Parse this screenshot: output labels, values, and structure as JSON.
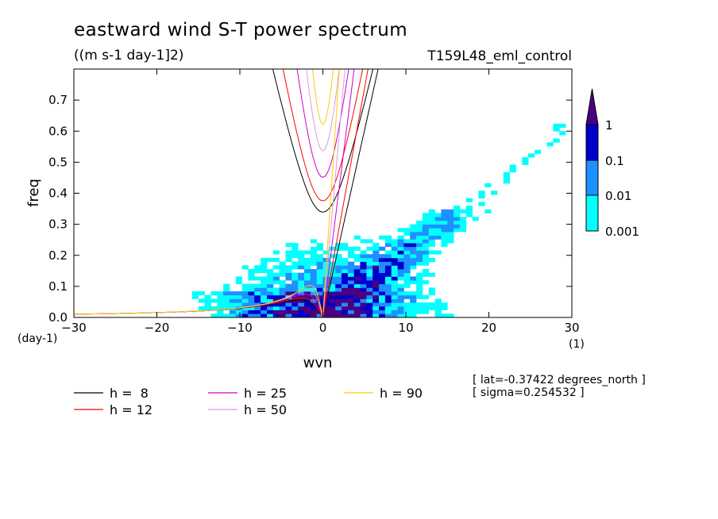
{
  "chart_data": {
    "type": "heatmap",
    "title": "eastward wind S-T power spectrum",
    "units": "((m s-1 day-1]2)",
    "experiment": "T159L48_eml_control",
    "xlabel": "wvn",
    "ylabel": "freq",
    "x_unit": "(1)",
    "y_unit": "(day-1)",
    "xlim": [
      -30,
      30
    ],
    "ylim": [
      0,
      0.8
    ],
    "xticks": [
      "-30",
      "-20",
      "-10",
      "0",
      "10",
      "20",
      "30"
    ],
    "yticks": [
      "0.0",
      "0.1",
      "0.2",
      "0.3",
      "0.4",
      "0.5",
      "0.6",
      "0.7"
    ],
    "levels": {
      "labels": [
        "0.001",
        "0.01",
        "0.1",
        "1"
      ],
      "colors": [
        "#00ffff",
        "#1e90ff",
        "#0000cd",
        "#4b0082"
      ]
    },
    "legend": [
      {
        "label": "h =  8",
        "color": "#000000",
        "h": 8
      },
      {
        "label": "h = 12",
        "color": "#ff0000",
        "h": 12
      },
      {
        "label": "h = 25",
        "color": "#cc00cc",
        "h": 25
      },
      {
        "label": "h = 50",
        "color": "#dd99dd",
        "h": 50
      },
      {
        "label": "h = 90",
        "color": "#ffcc00",
        "h": 90
      }
    ],
    "info": {
      "lat": "[ lat=-0.37422 degrees_north ]",
      "sigma": "[ sigma=0.254532 ]"
    }
  }
}
